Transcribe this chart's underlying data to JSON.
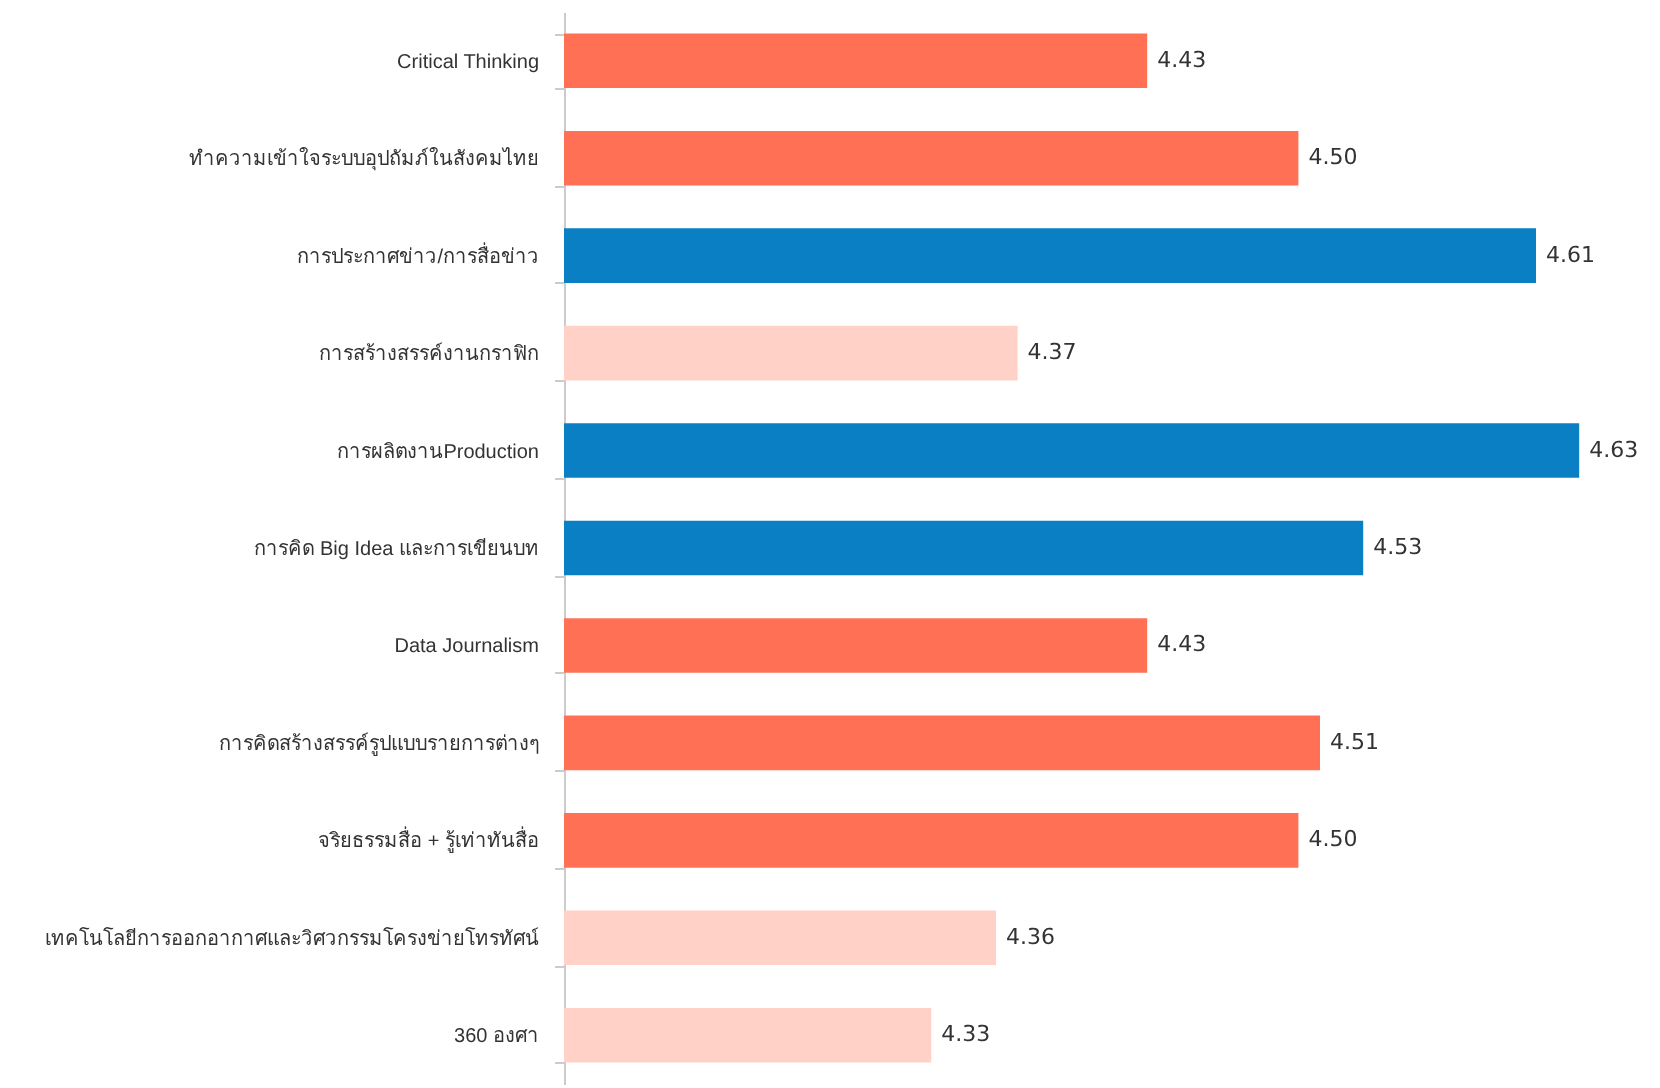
{
  "chart_data": {
    "type": "bar",
    "orientation": "horizontal",
    "categories": [
      "Critical Thinking",
      "ทำความเข้าใจระบบอุปถัมภ์ในสังคมไทย",
      "การประกาศข่าว/การสื่อข่าว",
      "การสร้างสรรค์งานกราฟิก",
      "การผลิตงานProduction",
      "การคิด Big Idea  และการเขียนบท",
      "Data Journalism",
      "การคิดสร้างสรรค์รูปแบบรายการต่างๆ",
      "จริยธรรมสื่อ + รู้เท่าทันสื่อ",
      "เทคโนโลยีการออกอากาศและวิศวกรรมโครงข่ายโทรทัศน์",
      "360 องศา"
    ],
    "values": [
      4.43,
      4.5,
      4.61,
      4.37,
      4.63,
      4.53,
      4.43,
      4.51,
      4.5,
      4.36,
      4.33
    ],
    "colors": [
      "#ff7055",
      "#ff7055",
      "#0a7fc4",
      "#ffd1c7",
      "#0a7fc4",
      "#0a7fc4",
      "#ff7055",
      "#ff7055",
      "#ff7055",
      "#ffd1c7",
      "#ffd1c7"
    ],
    "value_labels": [
      "4.43",
      "4.50",
      "4.61",
      "4.37",
      "4.63",
      "4.53",
      "4.43",
      "4.51",
      "4.50",
      "4.36",
      "4.33"
    ],
    "xlim": [
      4.16,
      4.66
    ]
  }
}
